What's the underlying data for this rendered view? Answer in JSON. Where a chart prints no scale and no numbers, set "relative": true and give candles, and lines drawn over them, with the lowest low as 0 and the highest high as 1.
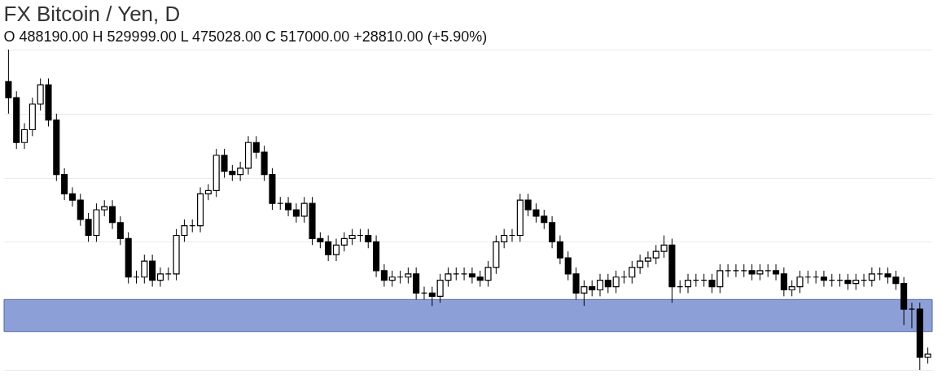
{
  "chart_data": {
    "type": "candlestick",
    "title": "FX Bitcoin / Yen, D",
    "annotations": [
      "O 488190.00 H 529999.00 L 475028.00 C 517000.00 +28810.00 (+5.90%)"
    ],
    "relative": true,
    "grid": "y",
    "bands": [
      {
        "axis": "y",
        "from": 0.12,
        "to": 0.22,
        "color": "#8c9fd6"
      }
    ],
    "categories": [
      null,
      null,
      null,
      null,
      null,
      null,
      null,
      null,
      null,
      null,
      null,
      null,
      null,
      null,
      null,
      null,
      null,
      null,
      null,
      null,
      null,
      null,
      null,
      null,
      null,
      null,
      null,
      null,
      null,
      null,
      null,
      null,
      null,
      null,
      null,
      null,
      null,
      null,
      null,
      null,
      null,
      null,
      null,
      null,
      null,
      null,
      null,
      null,
      null,
      null,
      null,
      null,
      null,
      null,
      null,
      null,
      null,
      null,
      null,
      null,
      null,
      null,
      null,
      null,
      null,
      null,
      null,
      null,
      null,
      null,
      null,
      null,
      null,
      null,
      null,
      null,
      null,
      null,
      null,
      null,
      null,
      null,
      null,
      null,
      null,
      null,
      null,
      null,
      null,
      null,
      null,
      null,
      null,
      null,
      null,
      null,
      null,
      null,
      null,
      null,
      null,
      null,
      null,
      null,
      null,
      null,
      null,
      null,
      null,
      null,
      null,
      null,
      null,
      null,
      null,
      null
    ],
    "ohlc": [
      [
        0.9,
        1.0,
        0.8,
        0.85
      ],
      [
        0.85,
        0.87,
        0.69,
        0.71
      ],
      [
        0.71,
        0.77,
        0.69,
        0.75
      ],
      [
        0.75,
        0.85,
        0.73,
        0.83
      ],
      [
        0.83,
        0.91,
        0.81,
        0.89
      ],
      [
        0.89,
        0.91,
        0.76,
        0.78
      ],
      [
        0.78,
        0.8,
        0.59,
        0.61
      ],
      [
        0.61,
        0.63,
        0.53,
        0.55
      ],
      [
        0.55,
        0.57,
        0.51,
        0.53
      ],
      [
        0.53,
        0.55,
        0.45,
        0.47
      ],
      [
        0.47,
        0.49,
        0.4,
        0.42
      ],
      [
        0.42,
        0.52,
        0.4,
        0.5
      ],
      [
        0.5,
        0.53,
        0.48,
        0.51
      ],
      [
        0.51,
        0.53,
        0.44,
        0.46
      ],
      [
        0.46,
        0.48,
        0.39,
        0.41
      ],
      [
        0.41,
        0.43,
        0.27,
        0.29
      ],
      [
        0.29,
        0.31,
        0.27,
        0.29
      ],
      [
        0.29,
        0.36,
        0.27,
        0.34
      ],
      [
        0.34,
        0.36,
        0.26,
        0.28
      ],
      [
        0.28,
        0.32,
        0.26,
        0.3
      ],
      [
        0.3,
        0.32,
        0.28,
        0.3
      ],
      [
        0.3,
        0.44,
        0.28,
        0.42
      ],
      [
        0.42,
        0.47,
        0.4,
        0.45
      ],
      [
        0.45,
        0.47,
        0.43,
        0.45
      ],
      [
        0.45,
        0.57,
        0.43,
        0.55
      ],
      [
        0.55,
        0.58,
        0.53,
        0.56
      ],
      [
        0.56,
        0.69,
        0.54,
        0.67
      ],
      [
        0.67,
        0.69,
        0.6,
        0.62
      ],
      [
        0.62,
        0.64,
        0.59,
        0.61
      ],
      [
        0.61,
        0.65,
        0.59,
        0.63
      ],
      [
        0.63,
        0.73,
        0.61,
        0.71
      ],
      [
        0.71,
        0.73,
        0.66,
        0.68
      ],
      [
        0.68,
        0.7,
        0.59,
        0.61
      ],
      [
        0.61,
        0.63,
        0.5,
        0.52
      ],
      [
        0.52,
        0.54,
        0.5,
        0.52
      ],
      [
        0.52,
        0.54,
        0.48,
        0.5
      ],
      [
        0.5,
        0.52,
        0.46,
        0.48
      ],
      [
        0.48,
        0.54,
        0.46,
        0.52
      ],
      [
        0.52,
        0.54,
        0.39,
        0.41
      ],
      [
        0.41,
        0.43,
        0.38,
        0.4
      ],
      [
        0.4,
        0.42,
        0.34,
        0.36
      ],
      [
        0.36,
        0.41,
        0.34,
        0.39
      ],
      [
        0.39,
        0.43,
        0.37,
        0.41
      ],
      [
        0.41,
        0.44,
        0.39,
        0.42
      ],
      [
        0.42,
        0.44,
        0.4,
        0.42
      ],
      [
        0.42,
        0.44,
        0.38,
        0.4
      ],
      [
        0.4,
        0.42,
        0.29,
        0.31
      ],
      [
        0.31,
        0.33,
        0.26,
        0.28
      ],
      [
        0.28,
        0.31,
        0.26,
        0.29
      ],
      [
        0.29,
        0.31,
        0.27,
        0.29
      ],
      [
        0.29,
        0.32,
        0.27,
        0.3
      ],
      [
        0.3,
        0.32,
        0.22,
        0.24
      ],
      [
        0.24,
        0.26,
        0.22,
        0.24
      ],
      [
        0.24,
        0.26,
        0.2,
        0.23
      ],
      [
        0.23,
        0.3,
        0.21,
        0.28
      ],
      [
        0.28,
        0.32,
        0.26,
        0.3
      ],
      [
        0.3,
        0.32,
        0.28,
        0.3
      ],
      [
        0.3,
        0.32,
        0.28,
        0.3
      ],
      [
        0.3,
        0.32,
        0.27,
        0.29
      ],
      [
        0.29,
        0.31,
        0.26,
        0.28
      ],
      [
        0.28,
        0.34,
        0.26,
        0.32
      ],
      [
        0.32,
        0.42,
        0.3,
        0.4
      ],
      [
        0.4,
        0.44,
        0.38,
        0.42
      ],
      [
        0.42,
        0.44,
        0.4,
        0.42
      ],
      [
        0.42,
        0.55,
        0.4,
        0.53
      ],
      [
        0.53,
        0.55,
        0.48,
        0.5
      ],
      [
        0.5,
        0.52,
        0.46,
        0.48
      ],
      [
        0.48,
        0.5,
        0.44,
        0.46
      ],
      [
        0.46,
        0.48,
        0.38,
        0.4
      ],
      [
        0.4,
        0.42,
        0.33,
        0.35
      ],
      [
        0.35,
        0.37,
        0.28,
        0.3
      ],
      [
        0.3,
        0.32,
        0.22,
        0.24
      ],
      [
        0.24,
        0.28,
        0.2,
        0.26
      ],
      [
        0.26,
        0.28,
        0.23,
        0.25
      ],
      [
        0.25,
        0.3,
        0.23,
        0.28
      ],
      [
        0.28,
        0.3,
        0.24,
        0.26
      ],
      [
        0.26,
        0.31,
        0.24,
        0.29
      ],
      [
        0.29,
        0.31,
        0.27,
        0.29
      ],
      [
        0.29,
        0.34,
        0.27,
        0.32
      ],
      [
        0.32,
        0.36,
        0.3,
        0.34
      ],
      [
        0.34,
        0.37,
        0.32,
        0.35
      ],
      [
        0.35,
        0.39,
        0.33,
        0.37
      ],
      [
        0.37,
        0.42,
        0.35,
        0.39
      ],
      [
        0.39,
        0.41,
        0.21,
        0.26
      ],
      [
        0.26,
        0.28,
        0.24,
        0.26
      ],
      [
        0.26,
        0.3,
        0.24,
        0.28
      ],
      [
        0.28,
        0.3,
        0.26,
        0.28
      ],
      [
        0.28,
        0.3,
        0.26,
        0.28
      ],
      [
        0.28,
        0.3,
        0.24,
        0.26
      ],
      [
        0.26,
        0.33,
        0.24,
        0.31
      ],
      [
        0.31,
        0.33,
        0.29,
        0.31
      ],
      [
        0.31,
        0.33,
        0.29,
        0.31
      ],
      [
        0.31,
        0.33,
        0.29,
        0.31
      ],
      [
        0.31,
        0.33,
        0.28,
        0.3
      ],
      [
        0.3,
        0.33,
        0.28,
        0.31
      ],
      [
        0.31,
        0.33,
        0.29,
        0.31
      ],
      [
        0.31,
        0.33,
        0.28,
        0.3
      ],
      [
        0.3,
        0.32,
        0.23,
        0.25
      ],
      [
        0.25,
        0.28,
        0.23,
        0.26
      ],
      [
        0.26,
        0.31,
        0.24,
        0.29
      ],
      [
        0.29,
        0.31,
        0.27,
        0.29
      ],
      [
        0.29,
        0.31,
        0.27,
        0.29
      ],
      [
        0.29,
        0.31,
        0.26,
        0.28
      ],
      [
        0.28,
        0.3,
        0.26,
        0.28
      ],
      [
        0.28,
        0.3,
        0.26,
        0.28
      ],
      [
        0.28,
        0.3,
        0.25,
        0.27
      ],
      [
        0.27,
        0.3,
        0.25,
        0.28
      ],
      [
        0.28,
        0.3,
        0.26,
        0.28
      ],
      [
        0.28,
        0.32,
        0.26,
        0.3
      ],
      [
        0.3,
        0.32,
        0.28,
        0.3
      ],
      [
        0.3,
        0.32,
        0.27,
        0.29
      ],
      [
        0.29,
        0.31,
        0.25,
        0.27
      ],
      [
        0.27,
        0.29,
        0.14,
        0.19
      ],
      [
        0.19,
        0.21,
        0.13,
        0.19
      ],
      [
        0.19,
        0.21,
        0.0,
        0.04
      ],
      [
        0.04,
        0.07,
        0.02,
        0.05
      ]
    ]
  }
}
